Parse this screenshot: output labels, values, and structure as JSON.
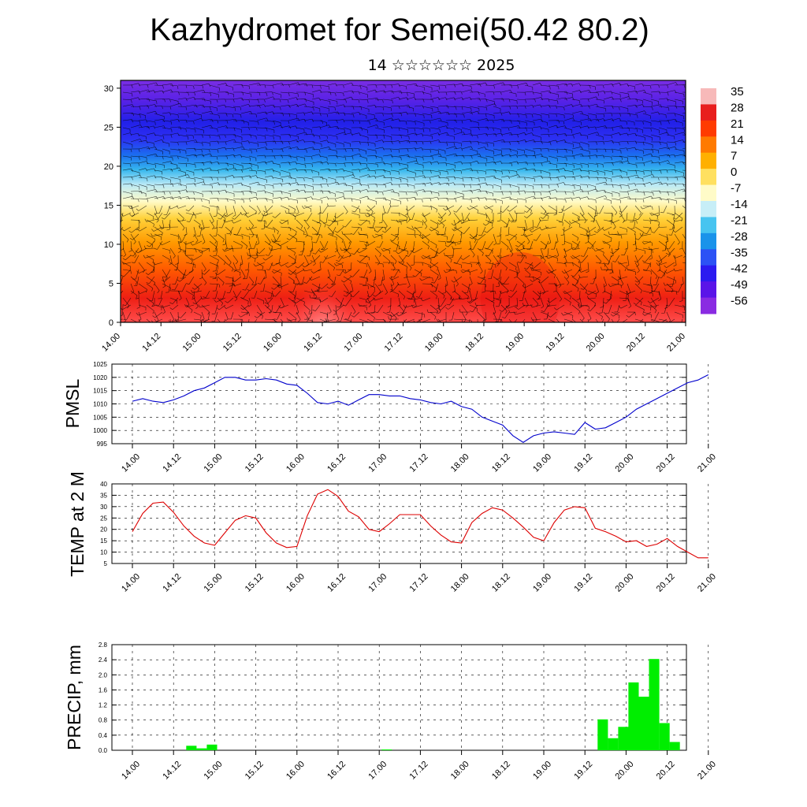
{
  "title": "Kazhydromet for Semei(50.42 80.2)",
  "subtitle": "14 ☆☆☆☆☆☆ 2025",
  "time_ticks": [
    "14.00",
    "14.12",
    "15.00",
    "15.12",
    "16.00",
    "16.12",
    "17.00",
    "17.12",
    "18.00",
    "18.12",
    "19.00",
    "19.12",
    "20.00",
    "20.12",
    "21.00"
  ],
  "colors": {
    "pmsl_line": "#0000cc",
    "temp_line": "#dd0000",
    "precip_bar": "#00ee00"
  },
  "chart_data": [
    {
      "type": "heatmap",
      "name_hint": "cross-section",
      "ylim": [
        0,
        31
      ],
      "yticks": [
        "0",
        "5",
        "10",
        "15",
        "20",
        "25",
        "30"
      ],
      "colorbar_labels": [
        "35",
        "28",
        "21",
        "14",
        "7",
        "0",
        "-7",
        "-14",
        "-21",
        "-28",
        "-35",
        "-42",
        "-49",
        "-56"
      ],
      "colorbar_colors": [
        "#f7b9b9",
        "#e81e1e",
        "#ff3b00",
        "#ff7a00",
        "#ffb000",
        "#ffe060",
        "#fffbc8",
        "#c7eef7",
        "#47c4f0",
        "#1a93ea",
        "#2c52f5",
        "#2b1af0",
        "#5a14e8",
        "#8a2be2"
      ],
      "wind_barbs": true
    },
    {
      "type": "line",
      "ylabel": "PMSL",
      "ylim": [
        995,
        1025
      ],
      "yticks": [
        "995",
        "1000",
        "1005",
        "1010",
        "1015",
        "1020",
        "1025"
      ],
      "x": [
        0,
        1,
        2,
        3,
        4,
        5,
        6,
        7,
        8,
        9,
        10,
        11,
        12,
        13,
        14,
        15,
        16,
        17,
        18,
        19,
        20,
        21,
        22,
        23,
        24,
        25,
        26,
        27,
        28,
        29,
        30,
        31,
        32,
        33,
        34,
        35,
        36,
        37,
        38,
        39,
        40,
        41,
        42,
        43,
        44,
        45,
        46,
        47,
        48,
        49,
        50,
        51,
        52,
        53,
        54,
        55,
        56
      ],
      "values": [
        1011,
        1012,
        1011,
        1010.5,
        1011.5,
        1013,
        1015,
        1016,
        1018,
        1020,
        1020,
        1019,
        1019,
        1019.5,
        1019,
        1017.5,
        1017,
        1014,
        1010.5,
        1010,
        1011,
        1009.5,
        1011.5,
        1013.5,
        1013.5,
        1013,
        1013,
        1012,
        1011.5,
        1010.5,
        1010,
        1011,
        1009,
        1008,
        1005,
        1003.5,
        1002,
        998,
        995.5,
        998,
        999,
        999.5,
        999,
        998.5,
        1003,
        1000.5,
        1001,
        1003,
        1005,
        1008,
        1010,
        1012,
        1014,
        1016,
        1018,
        1019,
        1021
      ]
    },
    {
      "type": "line",
      "ylabel": "TEMP at 2 M",
      "ylim": [
        5,
        40
      ],
      "yticks": [
        "5",
        "10",
        "15",
        "20",
        "25",
        "30",
        "35",
        "40"
      ],
      "x": [
        0,
        1,
        2,
        3,
        4,
        5,
        6,
        7,
        8,
        9,
        10,
        11,
        12,
        13,
        14,
        15,
        16,
        17,
        18,
        19,
        20,
        21,
        22,
        23,
        24,
        25,
        26,
        27,
        28,
        29,
        30,
        31,
        32,
        33,
        34,
        35,
        36,
        37,
        38,
        39,
        40,
        41,
        42,
        43,
        44,
        45,
        46,
        47,
        48,
        49,
        50,
        51,
        52,
        53,
        54,
        55,
        56
      ],
      "values": [
        19,
        27,
        31.5,
        32,
        27.5,
        21.5,
        17,
        14,
        13,
        18.5,
        24,
        26,
        25,
        18.5,
        14,
        12,
        12.5,
        26,
        35.5,
        37.5,
        34.5,
        28,
        25.5,
        20,
        19,
        22.5,
        26.5,
        26.5,
        26.5,
        21.5,
        17.5,
        14.5,
        14,
        23,
        27,
        29.5,
        28.5,
        25,
        21,
        16.5,
        15,
        23,
        28.5,
        30,
        29.5,
        20.5,
        19,
        17,
        14.5,
        15,
        12.5,
        13.5,
        16,
        12.5,
        10,
        7.5,
        7.5
      ]
    },
    {
      "type": "bar",
      "ylabel": "PRECIP, mm",
      "ylim": [
        0,
        2.8
      ],
      "yticks": [
        "0.0",
        "0.4",
        "0.8",
        "1.2",
        "1.6",
        "2.0",
        "2.4",
        "2.8"
      ],
      "x": [
        5,
        6,
        7,
        24,
        45,
        46,
        47,
        48,
        49,
        50,
        51,
        52,
        53
      ],
      "values": [
        0.12,
        0.05,
        0.15,
        0.02,
        0.82,
        0.32,
        0.62,
        1.8,
        1.42,
        2.42,
        0.72,
        0.22,
        0.0
      ]
    }
  ]
}
